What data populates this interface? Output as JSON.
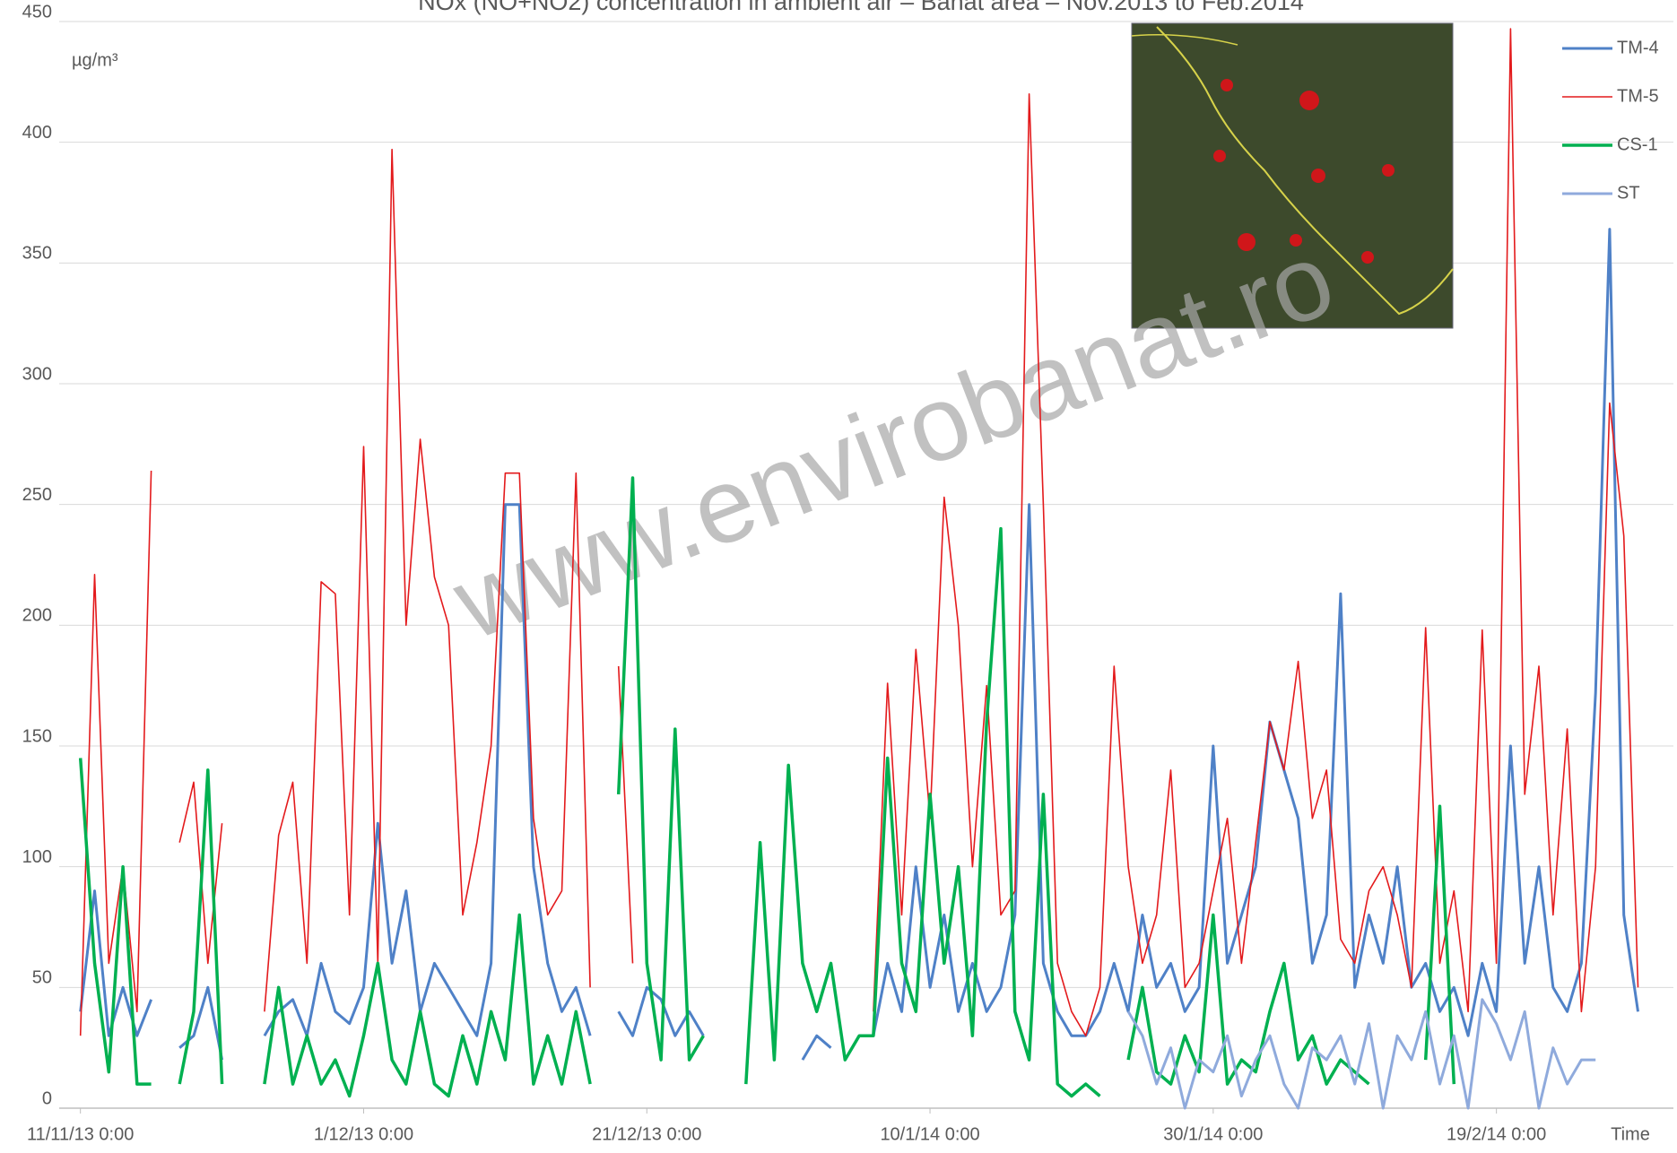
{
  "chart_data": {
    "type": "line",
    "title": "NOx (NO+NO2) concentration in ambient air – Banat area – Nov.2013 to Feb.2014",
    "y_label": "µg/m³",
    "x_label": "Time",
    "watermark": "www.envirobanat.ro",
    "xlim": [
      "2013-11-09T12:00",
      "2014-03-03T12:00"
    ],
    "xticks": [
      {
        "value": "2013-11-11T00:00",
        "label": "11/11/13 0:00"
      },
      {
        "value": "2013-12-01T00:00",
        "label": "1/12/13 0:00"
      },
      {
        "value": "2013-12-21T00:00",
        "label": "21/12/13 0:00"
      },
      {
        "value": "2014-01-10T00:00",
        "label": "10/1/14 0:00"
      },
      {
        "value": "2014-01-30T00:00",
        "label": "30/1/14 0:00"
      },
      {
        "value": "2014-02-19T00:00",
        "label": "19/2/14 0:00"
      }
    ],
    "ylim": [
      0,
      450
    ],
    "yticks": [
      0,
      50,
      100,
      150,
      200,
      250,
      300,
      350,
      400,
      450
    ],
    "grid": true,
    "legend": "top-right",
    "x": [
      "2013-11-10T00:00",
      "2013-11-11T00:00",
      "2013-11-12T00:00",
      "2013-11-13T00:00",
      "2013-11-14T00:00",
      "2013-11-15T00:00",
      "2013-11-16T00:00",
      "2013-11-17T00:00",
      "2013-11-18T00:00",
      "2013-11-19T00:00",
      "2013-11-20T00:00",
      "2013-11-21T00:00",
      "2013-11-22T00:00",
      "2013-11-23T00:00",
      "2013-11-24T00:00",
      "2013-11-25T00:00",
      "2013-11-26T00:00",
      "2013-11-27T00:00",
      "2013-11-28T00:00",
      "2013-11-29T00:00",
      "2013-11-30T00:00",
      "2013-12-01T00:00",
      "2013-12-02T00:00",
      "2013-12-03T00:00",
      "2013-12-04T00:00",
      "2013-12-05T00:00",
      "2013-12-06T00:00",
      "2013-12-07T00:00",
      "2013-12-08T00:00",
      "2013-12-09T00:00",
      "2013-12-10T00:00",
      "2013-12-11T00:00",
      "2013-12-12T00:00",
      "2013-12-13T00:00",
      "2013-12-14T00:00",
      "2013-12-15T00:00",
      "2013-12-16T00:00",
      "2013-12-17T00:00",
      "2013-12-18T00:00",
      "2013-12-19T00:00",
      "2013-12-20T00:00",
      "2013-12-21T00:00",
      "2013-12-22T00:00",
      "2013-12-23T00:00",
      "2013-12-24T00:00",
      "2013-12-25T00:00",
      "2013-12-26T00:00",
      "2013-12-27T00:00",
      "2013-12-28T00:00",
      "2013-12-29T00:00",
      "2013-12-30T00:00",
      "2013-12-31T00:00",
      "2014-01-01T00:00",
      "2014-01-02T00:00",
      "2014-01-03T00:00",
      "2014-01-04T00:00",
      "2014-01-05T00:00",
      "2014-01-06T00:00",
      "2014-01-07T00:00",
      "2014-01-08T00:00",
      "2014-01-09T00:00",
      "2014-01-10T00:00",
      "2014-01-11T00:00",
      "2014-01-12T00:00",
      "2014-01-13T00:00",
      "2014-01-14T00:00",
      "2014-01-15T00:00",
      "2014-01-16T00:00",
      "2014-01-17T00:00",
      "2014-01-18T00:00",
      "2014-01-19T00:00",
      "2014-01-20T00:00",
      "2014-01-21T00:00",
      "2014-01-22T00:00",
      "2014-01-23T00:00",
      "2014-01-24T00:00",
      "2014-01-25T00:00",
      "2014-01-26T00:00",
      "2014-01-27T00:00",
      "2014-01-28T00:00",
      "2014-01-29T00:00",
      "2014-01-30T00:00",
      "2014-01-31T00:00",
      "2014-02-01T00:00",
      "2014-02-02T00:00",
      "2014-02-03T00:00",
      "2014-02-04T00:00",
      "2014-02-05T00:00",
      "2014-02-06T00:00",
      "2014-02-07T00:00",
      "2014-02-08T00:00",
      "2014-02-09T00:00",
      "2014-02-10T00:00",
      "2014-02-11T00:00",
      "2014-02-12T00:00",
      "2014-02-13T00:00",
      "2014-02-14T00:00",
      "2014-02-15T00:00",
      "2014-02-16T00:00",
      "2014-02-17T00:00",
      "2014-02-18T00:00",
      "2014-02-19T00:00",
      "2014-02-20T00:00",
      "2014-02-21T00:00",
      "2014-02-22T00:00",
      "2014-02-23T00:00",
      "2014-02-24T00:00",
      "2014-02-25T00:00",
      "2014-02-26T00:00",
      "2014-02-27T00:00",
      "2014-02-28T00:00",
      "2014-03-01T00:00"
    ],
    "series": [
      {
        "name": "TM-4",
        "color": "#4f81c7",
        "values": [
          null,
          40,
          90,
          30,
          50,
          30,
          45,
          null,
          25,
          30,
          50,
          20,
          null,
          null,
          30,
          40,
          45,
          30,
          60,
          40,
          35,
          50,
          118,
          60,
          90,
          40,
          60,
          50,
          40,
          30,
          60,
          250,
          250,
          100,
          60,
          40,
          50,
          30,
          null,
          40,
          30,
          50,
          45,
          30,
          40,
          30,
          null,
          null,
          null,
          null,
          null,
          null,
          20,
          30,
          25,
          null,
          null,
          30,
          60,
          40,
          100,
          50,
          80,
          40,
          60,
          40,
          50,
          80,
          250,
          60,
          40,
          30,
          30,
          40,
          60,
          40,
          80,
          50,
          60,
          40,
          50,
          150,
          60,
          80,
          100,
          160,
          140,
          120,
          60,
          80,
          213,
          50,
          80,
          60,
          100,
          50,
          60,
          40,
          50,
          30,
          60,
          40,
          150,
          60,
          100,
          50,
          40,
          60,
          172,
          364,
          80,
          40
        ]
      },
      {
        "name": "TM-5",
        "color": "#e31a1c",
        "values": [
          null,
          30,
          221,
          60,
          100,
          40,
          264,
          null,
          110,
          135,
          60,
          118,
          null,
          null,
          40,
          113,
          135,
          60,
          218,
          213,
          80,
          274,
          60,
          397,
          200,
          277,
          220,
          200,
          80,
          110,
          150,
          263,
          263,
          120,
          80,
          90,
          263,
          50,
          null,
          183,
          60,
          null,
          null,
          null,
          null,
          null,
          null,
          null,
          null,
          null,
          null,
          null,
          null,
          null,
          null,
          null,
          null,
          40,
          176,
          80,
          190,
          120,
          253,
          200,
          100,
          175,
          80,
          90,
          420,
          250,
          60,
          40,
          30,
          50,
          183,
          100,
          60,
          80,
          140,
          50,
          60,
          90,
          120,
          60,
          110,
          160,
          140,
          185,
          120,
          140,
          70,
          60,
          90,
          100,
          80,
          50,
          199,
          60,
          90,
          40,
          198,
          60,
          447,
          130,
          183,
          80,
          157,
          40,
          100,
          292,
          237,
          50
        ]
      },
      {
        "name": "CS-1",
        "color": "#00b050",
        "values": [
          null,
          145,
          60,
          15,
          100,
          10,
          10,
          null,
          10,
          40,
          140,
          10,
          null,
          null,
          10,
          50,
          10,
          30,
          10,
          20,
          5,
          30,
          60,
          20,
          10,
          40,
          10,
          5,
          30,
          10,
          40,
          20,
          80,
          10,
          30,
          10,
          40,
          10,
          null,
          130,
          261,
          60,
          20,
          157,
          20,
          30,
          null,
          null,
          10,
          110,
          20,
          142,
          60,
          40,
          60,
          20,
          30,
          30,
          145,
          60,
          40,
          130,
          60,
          100,
          30,
          160,
          240,
          40,
          20,
          130,
          10,
          5,
          10,
          5,
          null,
          20,
          50,
          15,
          10,
          30,
          15,
          80,
          10,
          20,
          15,
          40,
          60,
          20,
          30,
          10,
          20,
          15,
          10,
          null,
          null,
          null,
          20,
          125,
          10,
          null,
          null,
          null,
          null,
          null,
          null,
          null,
          null,
          null,
          null,
          null,
          null,
          null
        ]
      },
      {
        "name": "ST",
        "color": "#8faadc",
        "values": [
          null,
          null,
          null,
          null,
          null,
          null,
          null,
          null,
          null,
          null,
          null,
          null,
          null,
          null,
          null,
          null,
          null,
          null,
          null,
          null,
          null,
          null,
          null,
          null,
          null,
          null,
          null,
          null,
          null,
          null,
          null,
          null,
          null,
          null,
          null,
          null,
          null,
          null,
          null,
          null,
          null,
          null,
          null,
          null,
          null,
          null,
          null,
          null,
          null,
          null,
          null,
          null,
          null,
          null,
          null,
          null,
          null,
          null,
          null,
          null,
          null,
          null,
          null,
          null,
          null,
          null,
          null,
          null,
          null,
          null,
          null,
          null,
          null,
          null,
          null,
          40,
          30,
          10,
          25,
          0,
          20,
          15,
          30,
          5,
          20,
          30,
          10,
          0,
          25,
          20,
          30,
          10,
          35,
          0,
          30,
          20,
          40,
          10,
          30,
          0,
          45,
          35,
          20,
          40,
          0,
          25,
          10,
          20,
          20,
          null,
          null,
          null
        ]
      }
    ]
  }
}
